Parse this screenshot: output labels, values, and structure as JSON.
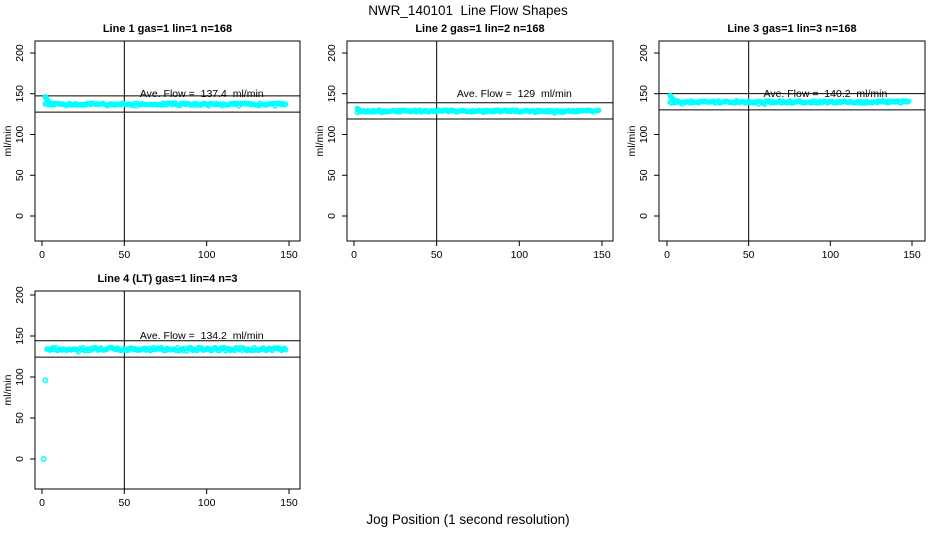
{
  "chart_data": {
    "type": "scatter",
    "title": "NWR_140101  Line Flow Shapes",
    "xlabel": "Jog Position (1 second resolution)",
    "ylabel": "ml/min",
    "x_ticks": [
      0,
      50,
      100,
      150
    ],
    "y_ticks": [
      0,
      50,
      100,
      150,
      200
    ],
    "xlim": [
      -5,
      157
    ],
    "ylim": [
      -31,
      215
    ],
    "grid": false,
    "legend": null,
    "vline_x": 50,
    "point_color": "#00ffff",
    "axis_color": "#000000",
    "background_color": "#ffffff",
    "panels": [
      {
        "id": "line-1",
        "title": "Line 1 gas=1 lin=1 n=168",
        "line": 1,
        "gas": 1,
        "lin": 1,
        "n": 168,
        "ave_flow": 137.4,
        "annotation": "Ave. Flow =  137.4  ml/min",
        "annotation_xy": [
          97,
          150
        ],
        "ref_lines": [
          147.4,
          127.4
        ],
        "band": {
          "x_start": 2,
          "x_end": 148,
          "mean": 137.3,
          "jitter": 1.2,
          "points": 160
        },
        "lead_in_points": [
          [
            2,
            146.3
          ],
          [
            2.4,
            145.0
          ],
          [
            2.8,
            143.6
          ],
          [
            3.3,
            142.2
          ],
          [
            3.8,
            140.8
          ],
          [
            4.4,
            139.6
          ],
          [
            5,
            138.6
          ],
          [
            6,
            137.9
          ]
        ],
        "outliers": []
      },
      {
        "id": "line-2",
        "title": "Line 2 gas=1 lin=2 n=168",
        "line": 2,
        "gas": 1,
        "lin": 2,
        "n": 168,
        "ave_flow": 129,
        "annotation": "Ave. Flow =  129  ml/min",
        "annotation_xy": [
          97,
          150
        ],
        "ref_lines": [
          139,
          119
        ],
        "band": {
          "x_start": 2,
          "x_end": 148,
          "mean": 128.8,
          "jitter": 1.1,
          "points": 160
        },
        "lead_in_points": [
          [
            2,
            131.8
          ],
          [
            2.6,
            130.8
          ],
          [
            3.3,
            129.9
          ]
        ],
        "outliers": []
      },
      {
        "id": "line-3",
        "title": "Line 3 gas=1 lin=3 n=168",
        "line": 3,
        "gas": 1,
        "lin": 3,
        "n": 168,
        "ave_flow": 140.2,
        "annotation": "Ave. Flow =  140.2  ml/min",
        "annotation_xy": [
          97,
          150
        ],
        "ref_lines": [
          150.2,
          130.2
        ],
        "band": {
          "x_start": 2,
          "x_end": 148,
          "mean": 140.0,
          "jitter": 1.4,
          "points": 160
        },
        "lead_in_points": [
          [
            2,
            147.6
          ],
          [
            2.4,
            146.4
          ],
          [
            2.8,
            145.2
          ],
          [
            3.3,
            144.0
          ],
          [
            3.9,
            142.9
          ],
          [
            4.6,
            141.9
          ],
          [
            5.4,
            141.2
          ],
          [
            6.3,
            140.7
          ]
        ],
        "outliers": []
      },
      {
        "id": "line-4",
        "title": "Line 4 (LT) gas=1 lin=4 n=3",
        "line": 4,
        "gas": 1,
        "lin": 4,
        "n": 3,
        "ave_flow": 134.2,
        "annotation": "Ave. Flow =  134.2  ml/min",
        "annotation_xy": [
          97,
          150
        ],
        "ref_lines": [
          144.2,
          124.2
        ],
        "band": {
          "x_start": 3,
          "x_end": 148,
          "mean": 134.0,
          "jitter": 1.9,
          "points": 160
        },
        "lead_in_points": [],
        "outliers": [
          [
            1,
            0
          ],
          [
            2,
            96
          ]
        ]
      }
    ]
  }
}
